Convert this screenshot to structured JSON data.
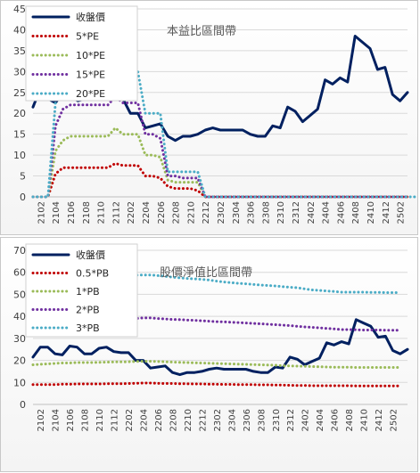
{
  "chart_data": [
    {
      "type": "line",
      "title": "本益比區間帶",
      "ylim": [
        0,
        45
      ],
      "yticks": [
        0,
        5,
        10,
        15,
        20,
        25,
        30,
        35,
        40,
        45
      ],
      "xticks": [
        "2102",
        "2104",
        "2106",
        "2108",
        "2110",
        "2112",
        "2202",
        "2204",
        "2206",
        "2208",
        "2210",
        "2212",
        "2302",
        "2304",
        "2306",
        "2308",
        "2310",
        "2312",
        "2402",
        "2404",
        "2406",
        "2408",
        "2410",
        "2412",
        "2502"
      ],
      "legend_position": "top-left",
      "series": [
        {
          "name": "收盤價",
          "color": "#002060",
          "style": "solid",
          "values": [
            21.5,
            26,
            23.5,
            22.5,
            25,
            24,
            23,
            23.5,
            25.5,
            24.5,
            23.5,
            23.5,
            23.5,
            20,
            20,
            16.5,
            17,
            17.5,
            14.5,
            13.5,
            14.5,
            14.5,
            15,
            16,
            16.5,
            16,
            16,
            16,
            16,
            15,
            14.5,
            14.5,
            17,
            16.5,
            21.5,
            20.5,
            18,
            19.5,
            21,
            28,
            27,
            28.5,
            27.5,
            38.5,
            37,
            35.5,
            30.5,
            31,
            24.5,
            23,
            25
          ]
        },
        {
          "name": "5*PE",
          "color": "#c00000",
          "style": "dotted",
          "values": [
            0,
            0,
            0,
            5.5,
            7,
            7,
            7,
            7,
            7,
            7,
            7,
            8,
            7.5,
            7.5,
            7.5,
            5,
            5,
            4.5,
            2.5,
            2,
            2,
            2,
            1.5,
            0,
            0,
            0,
            0,
            0,
            0,
            0,
            0,
            0,
            0,
            0,
            0,
            0,
            0,
            0,
            0,
            0,
            0,
            0,
            0,
            0,
            0,
            0,
            0,
            0,
            0,
            0,
            0
          ]
        },
        {
          "name": "10*PE",
          "color": "#9bbb59",
          "style": "dotted",
          "values": [
            0,
            0,
            0,
            11,
            13.5,
            14.5,
            14.5,
            14.5,
            14.5,
            14.5,
            14.5,
            16.5,
            15,
            15,
            15,
            10,
            10,
            9.5,
            4,
            3.5,
            3.5,
            3.5,
            3.5,
            0,
            0,
            0,
            0,
            0,
            0,
            0,
            0,
            0,
            0,
            0,
            0,
            0,
            0,
            0,
            0,
            0,
            0,
            0,
            0,
            0,
            0,
            0,
            0,
            0,
            0,
            0,
            0
          ]
        },
        {
          "name": "15*PE",
          "color": "#7030a0",
          "style": "dotted",
          "values": [
            0,
            0,
            0,
            17,
            21,
            22,
            22,
            22,
            22,
            22,
            22,
            24,
            22.5,
            22.5,
            22.5,
            15,
            15,
            14,
            5,
            5,
            4.5,
            4.5,
            4.5,
            0,
            0,
            0,
            0,
            0,
            0,
            0,
            0,
            0,
            0,
            0,
            0,
            0,
            0,
            0,
            0,
            0,
            0,
            0,
            0,
            0,
            0,
            0,
            0,
            0,
            0,
            0,
            0
          ]
        },
        {
          "name": "20*PE",
          "color": "#4bacc6",
          "style": "dotted",
          "values": [
            0,
            0,
            0,
            22.5,
            28.5,
            29.5,
            29.5,
            29.5,
            29.5,
            29.5,
            29.5,
            31.5,
            30,
            30,
            30,
            20,
            20,
            20,
            6,
            6,
            6,
            6,
            6,
            0,
            0,
            0,
            0,
            0,
            0,
            0,
            0,
            0,
            0,
            0,
            0,
            0,
            0,
            0,
            0,
            0,
            0,
            0,
            0,
            0,
            0,
            0,
            0,
            0,
            0,
            0,
            0,
            0
          ]
        }
      ]
    },
    {
      "type": "line",
      "title": "股價淨值比區間帶",
      "ylim": [
        0,
        70
      ],
      "yticks": [
        0,
        10,
        20,
        30,
        40,
        50,
        60,
        70
      ],
      "xticks": [
        "2102",
        "2104",
        "2106",
        "2108",
        "2110",
        "2112",
        "2202",
        "2204",
        "2206",
        "2208",
        "2210",
        "2212",
        "2302",
        "2304",
        "2306",
        "2308",
        "2310",
        "2312",
        "2402",
        "2404",
        "2406",
        "2408",
        "2410",
        "2412",
        "2502"
      ],
      "legend_position": "top-left",
      "series": [
        {
          "name": "收盤價",
          "color": "#002060",
          "style": "solid",
          "values": [
            21.5,
            26,
            26,
            23,
            22.5,
            26.5,
            26,
            23,
            23,
            25.5,
            26,
            24,
            23.5,
            23.5,
            20,
            20,
            16.5,
            17,
            17.5,
            14.5,
            13.5,
            14.5,
            14.5,
            15,
            16,
            16.5,
            16,
            16,
            16,
            16,
            15,
            14.5,
            14.5,
            17,
            16.5,
            21.5,
            20.5,
            18,
            19.5,
            21,
            28,
            27,
            28.5,
            27.5,
            38.5,
            37,
            35.5,
            30.5,
            31,
            24.5,
            23,
            25
          ]
        },
        {
          "name": "0.5*PB",
          "color": "#c00000",
          "style": "dotted",
          "values": [
            9,
            9,
            9,
            9,
            9.2,
            9.2,
            9.3,
            9.3,
            9.3,
            9.3,
            9.4,
            9.4,
            9.4,
            9.5,
            9.6,
            9.7,
            9.7,
            9.6,
            9.5,
            9.5,
            9.4,
            9.4,
            9.3,
            9.3,
            9.2,
            9.2,
            9.1,
            9.1,
            9,
            9,
            9,
            8.9,
            8.9,
            8.8,
            8.8,
            8.7,
            8.6,
            8.6,
            8.5,
            8.5,
            8.5,
            8.5,
            8.5,
            8.5,
            8.4,
            8.4,
            8.4,
            8.4,
            8.4,
            8.4,
            8.4
          ]
        },
        {
          "name": "1*PB",
          "color": "#9bbb59",
          "style": "dotted",
          "values": [
            18,
            18.2,
            18.4,
            18.6,
            18.8,
            18.8,
            19,
            19,
            19,
            19.1,
            19.2,
            19.3,
            19.3,
            19.4,
            19.5,
            19.6,
            19.6,
            19.5,
            19.4,
            19.2,
            19.1,
            19,
            18.9,
            18.8,
            18.7,
            18.6,
            18.5,
            18.4,
            18.3,
            18.2,
            18.1,
            18,
            17.9,
            17.8,
            17.6,
            17.5,
            17.4,
            17.3,
            17.2,
            17.1,
            17,
            16.9,
            16.9,
            16.9,
            16.8,
            16.8,
            16.8,
            16.8,
            16.8,
            16.8,
            16.8
          ]
        },
        {
          "name": "2*PB",
          "color": "#7030a0",
          "style": "dotted",
          "values": [
            36.5,
            37,
            37.2,
            37.5,
            37.8,
            38,
            38.2,
            38.3,
            38.3,
            38.4,
            38.4,
            38.5,
            38.6,
            38.8,
            39,
            39.3,
            39.3,
            39,
            38.8,
            38.6,
            38.5,
            38.3,
            38.2,
            38,
            37.8,
            37.6,
            37.5,
            37.3,
            37.2,
            37,
            36.8,
            36.6,
            36.4,
            36.2,
            36,
            35.8,
            35.5,
            35.2,
            35,
            34.8,
            34.5,
            34.3,
            34,
            34,
            33.9,
            33.8,
            33.8,
            33.8,
            33.7,
            33.7,
            33.7
          ]
        },
        {
          "name": "3*PB",
          "color": "#4bacc6",
          "style": "dotted",
          "values": [
            54.5,
            55.5,
            56,
            56.5,
            57,
            57.2,
            57.5,
            57.7,
            57.8,
            58,
            58,
            58.2,
            58.3,
            58.5,
            58.7,
            58.8,
            58.8,
            58.5,
            58.2,
            57.8,
            57.5,
            57.2,
            57,
            56.8,
            56.5,
            56,
            55.6,
            55.3,
            55,
            54.8,
            54.5,
            54.2,
            54,
            53.8,
            53.5,
            53.2,
            53,
            52.5,
            52,
            51.8,
            51.5,
            51.3,
            51,
            51,
            51,
            51,
            50.9,
            50.9,
            50.8,
            50.8,
            50.8
          ]
        }
      ]
    }
  ]
}
